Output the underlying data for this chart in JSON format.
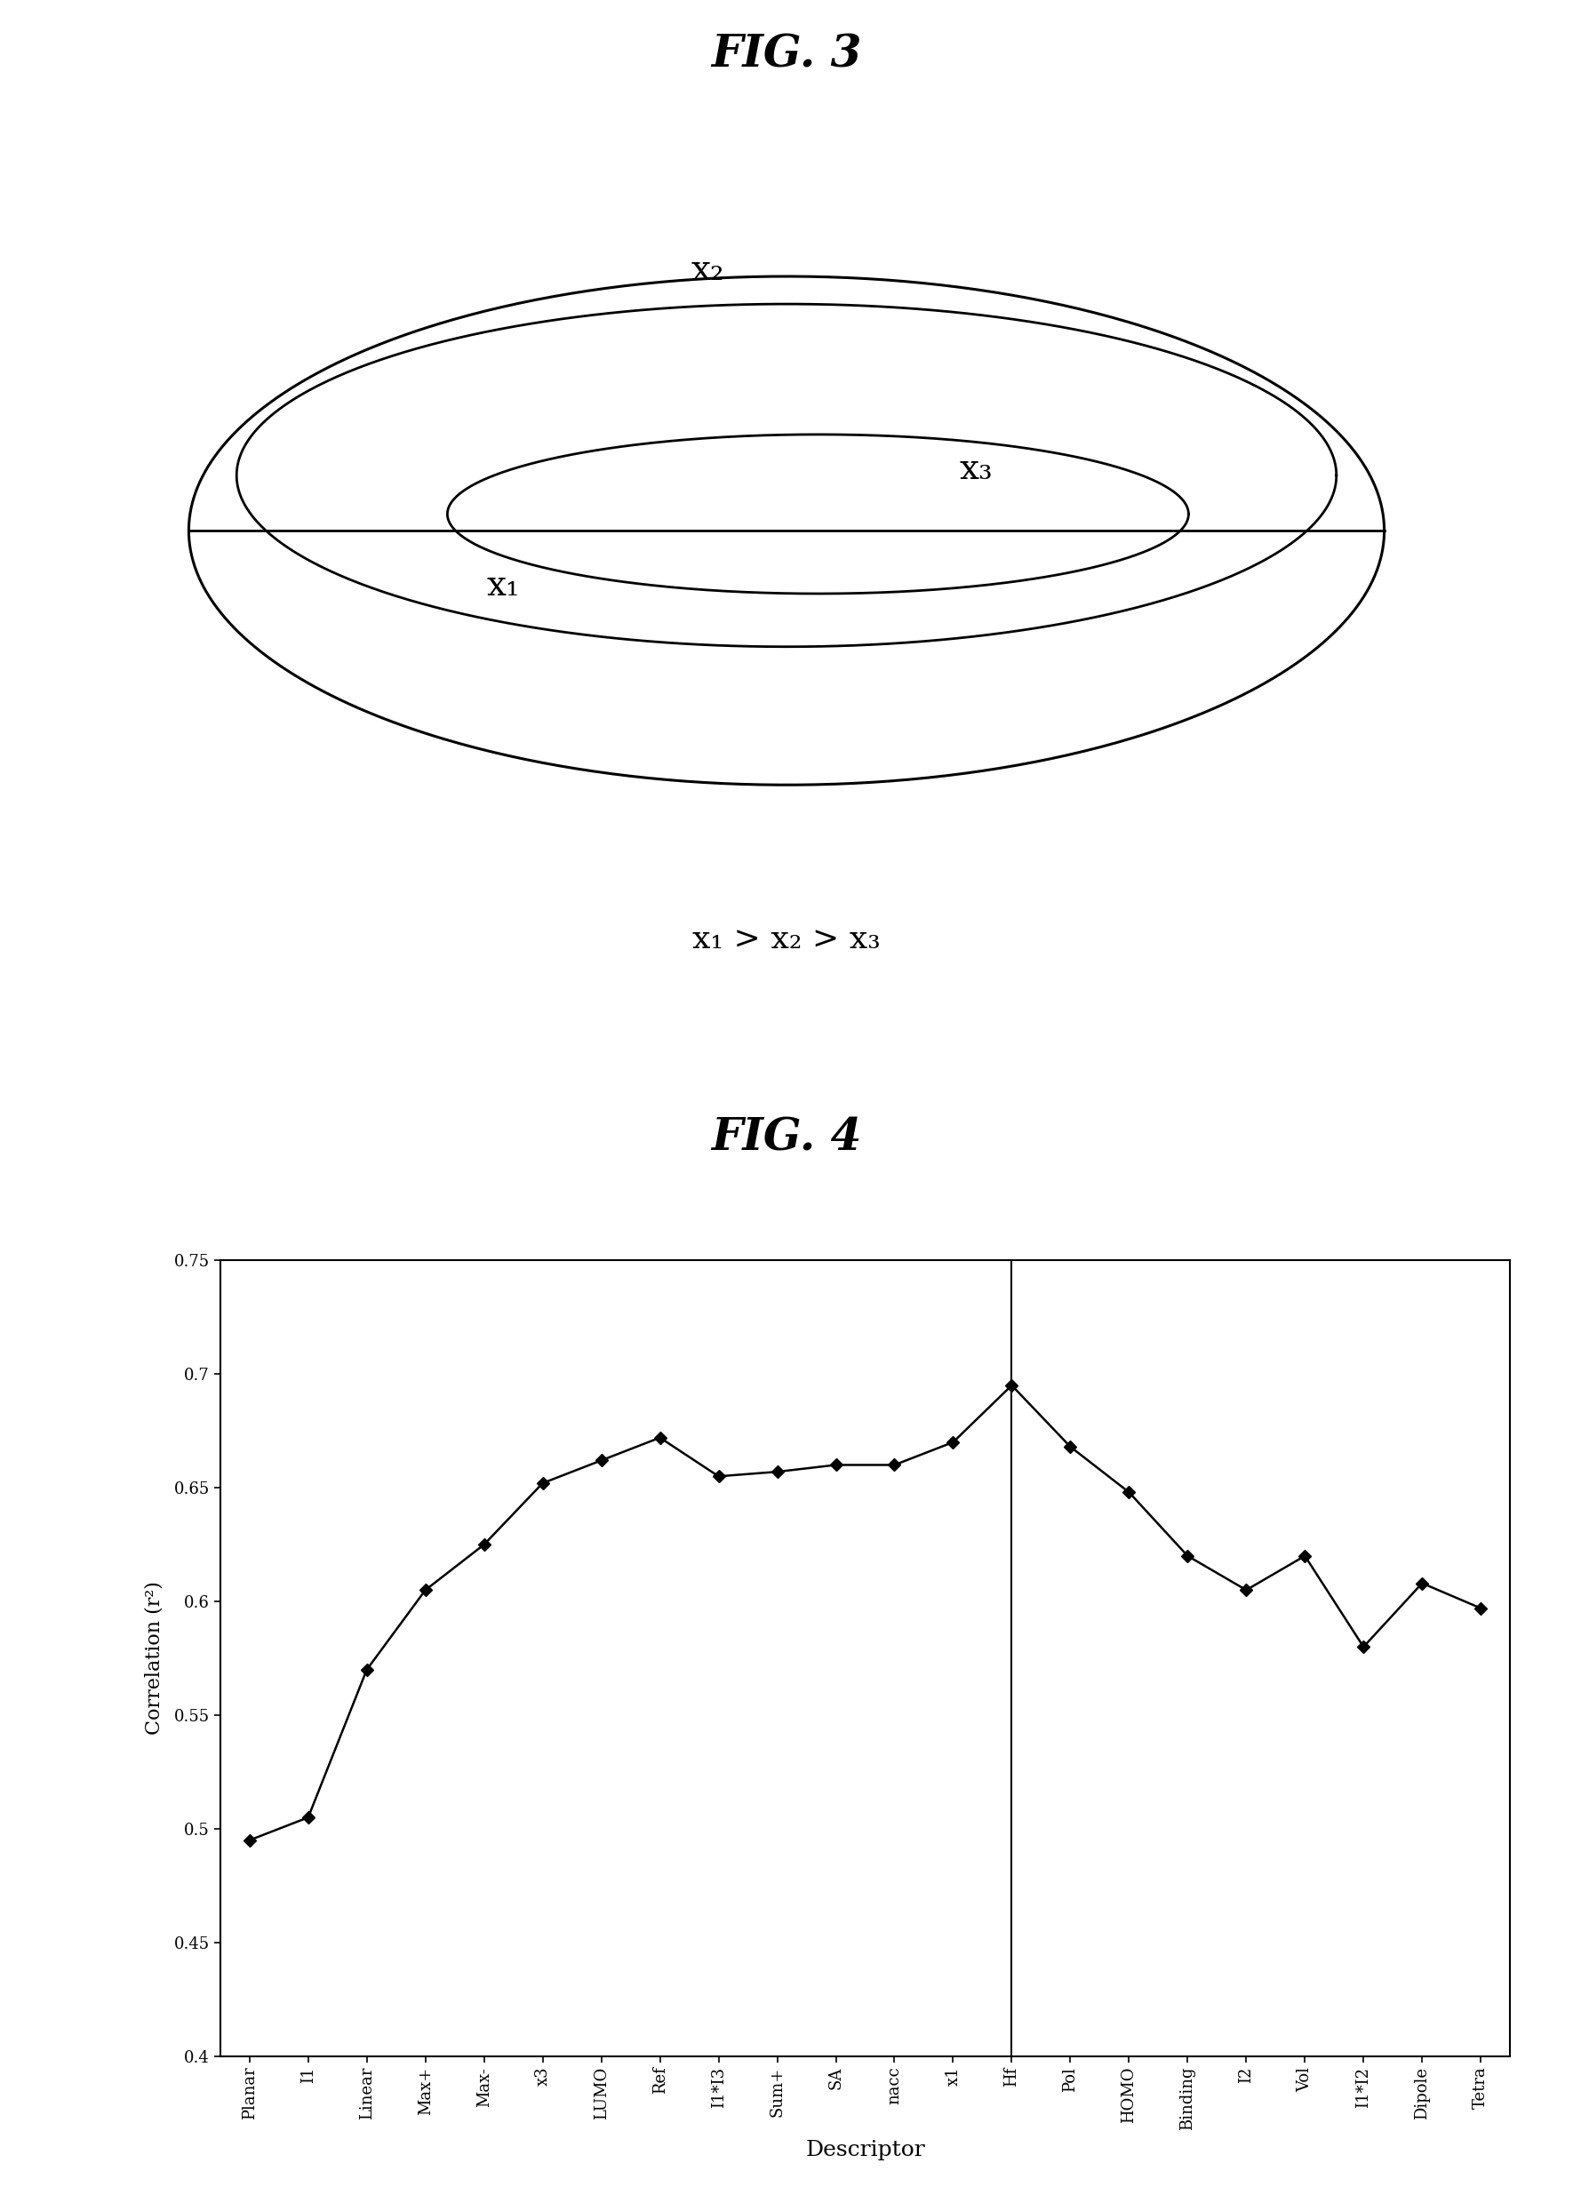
{
  "fig3_title": "FIG. 3",
  "fig4_title": "FIG. 4",
  "fig3_labels": {
    "x1": "x₁",
    "x2": "x₂",
    "x3": "x₃",
    "inequality": "x₁ > x₂ > x₃"
  },
  "fig4": {
    "descriptors": [
      "Planar",
      "I1",
      "Linear",
      "Max+",
      "Max-",
      "x3",
      "LUMO",
      "Ref",
      "I1*I3",
      "Sum+",
      "SA",
      "nacc",
      "x1",
      "Hf",
      "Pol",
      "HOMO",
      "Binding",
      "I2",
      "Vol",
      "I1*I2",
      "Dipole",
      "Tetra"
    ],
    "values": [
      0.495,
      0.505,
      0.57,
      0.605,
      0.625,
      0.652,
      0.662,
      0.672,
      0.655,
      0.657,
      0.66,
      0.66,
      0.67,
      0.695,
      0.668,
      0.648,
      0.62,
      0.605,
      0.62,
      0.58,
      0.608,
      0.597
    ],
    "vertical_line_index": 13,
    "xlabel": "Descriptor",
    "ylabel": "Correlation (r²)",
    "ylim": [
      0.4,
      0.75
    ],
    "yticks": [
      0.4,
      0.45,
      0.5,
      0.55,
      0.6,
      0.65,
      0.7,
      0.75
    ],
    "line_color": "#000000",
    "marker": "D",
    "marker_size": 7,
    "marker_color": "#000000"
  },
  "background_color": "#ffffff",
  "text_color": "#000000"
}
